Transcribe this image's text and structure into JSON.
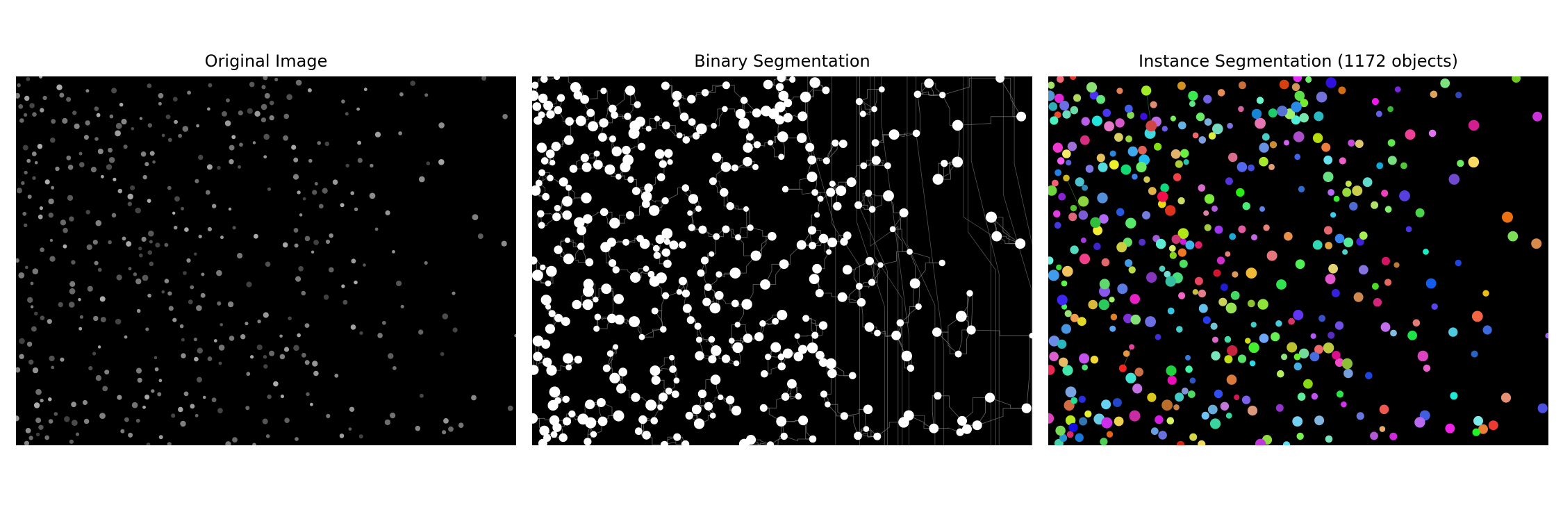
{
  "figure": {
    "panels": [
      {
        "title": "Original Image",
        "image": "grayscale-fluorescence-nuclei"
      },
      {
        "title": "Binary Segmentation",
        "image": "binary-mask-with-watershed-lines"
      },
      {
        "title": "Instance Segmentation (1172 objects)",
        "image": "colored-instance-labels"
      }
    ]
  },
  "colors": {
    "background": "#000000",
    "foreground": "#ffffff",
    "watershed_line": "#8a8a8a"
  }
}
